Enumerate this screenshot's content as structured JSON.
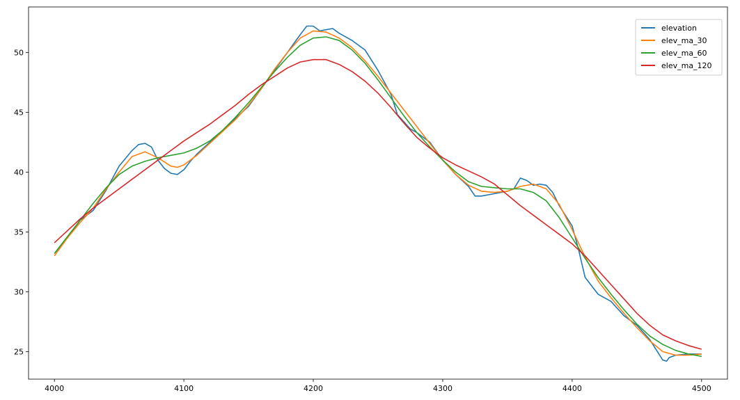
{
  "chart_data": {
    "type": "line",
    "title": "",
    "xlabel": "",
    "ylabel": "",
    "xlim": [
      3980,
      4520
    ],
    "ylim": [
      22.7,
      53.8
    ],
    "xticks": [
      4000,
      4100,
      4200,
      4300,
      4400,
      4500
    ],
    "yticks": [
      25,
      30,
      35,
      40,
      45,
      50
    ],
    "grid": false,
    "legend_position": "top-right",
    "series": [
      {
        "name": "elevation",
        "color": "#1f77b4",
        "x": [
          4000,
          4010,
          4020,
          4030,
          4040,
          4050,
          4060,
          4065,
          4070,
          4075,
          4080,
          4085,
          4090,
          4095,
          4100,
          4105,
          4110,
          4120,
          4130,
          4140,
          4150,
          4160,
          4170,
          4180,
          4190,
          4195,
          4200,
          4205,
          4210,
          4215,
          4220,
          4230,
          4240,
          4250,
          4260,
          4265,
          4270,
          4275,
          4280,
          4290,
          4300,
          4310,
          4320,
          4325,
          4330,
          4340,
          4350,
          4355,
          4360,
          4365,
          4370,
          4375,
          4380,
          4385,
          4390,
          4400,
          4405,
          4410,
          4420,
          4430,
          4440,
          4450,
          4460,
          4470,
          4473,
          4475,
          4480,
          4490,
          4500
        ],
        "values": [
          33.2,
          34.5,
          36.0,
          36.8,
          38.5,
          40.5,
          41.8,
          42.3,
          42.4,
          42.1,
          41.0,
          40.3,
          39.9,
          39.8,
          40.2,
          40.9,
          41.5,
          42.5,
          43.5,
          44.5,
          45.5,
          47.0,
          48.5,
          50.0,
          51.5,
          52.2,
          52.2,
          51.8,
          51.9,
          52.0,
          51.6,
          51.0,
          50.2,
          48.5,
          46.5,
          44.8,
          44.2,
          43.6,
          43.3,
          42.5,
          41.0,
          39.8,
          38.8,
          38.0,
          38.0,
          38.2,
          38.4,
          38.6,
          39.5,
          39.3,
          38.9,
          39.0,
          38.9,
          38.3,
          37.2,
          35.5,
          33.5,
          31.2,
          29.8,
          29.2,
          28.0,
          27.2,
          26.0,
          24.3,
          24.2,
          24.5,
          24.7,
          24.8,
          24.8
        ]
      },
      {
        "name": "elev_ma_30",
        "color": "#ff7f0e",
        "x": [
          4000,
          4010,
          4020,
          4030,
          4040,
          4050,
          4060,
          4070,
          4080,
          4090,
          4095,
          4100,
          4110,
          4120,
          4130,
          4140,
          4150,
          4160,
          4170,
          4180,
          4190,
          4200,
          4210,
          4220,
          4230,
          4240,
          4250,
          4260,
          4270,
          4280,
          4290,
          4300,
          4310,
          4320,
          4330,
          4340,
          4350,
          4360,
          4370,
          4380,
          4390,
          4400,
          4410,
          4420,
          4430,
          4440,
          4450,
          4460,
          4470,
          4480,
          4490,
          4500
        ],
        "values": [
          33.0,
          34.5,
          35.8,
          37.0,
          38.6,
          40.0,
          41.3,
          41.7,
          41.2,
          40.5,
          40.4,
          40.6,
          41.4,
          42.4,
          43.4,
          44.4,
          45.6,
          47.0,
          48.6,
          50.0,
          51.2,
          51.8,
          51.7,
          51.2,
          50.4,
          49.3,
          48.0,
          46.6,
          45.2,
          43.8,
          42.4,
          41.0,
          39.8,
          38.9,
          38.4,
          38.3,
          38.4,
          38.8,
          39.0,
          38.6,
          37.3,
          35.2,
          32.9,
          30.9,
          29.5,
          28.2,
          27.0,
          25.9,
          25.0,
          24.7,
          24.7,
          24.8
        ]
      },
      {
        "name": "elev_ma_60",
        "color": "#2ca02c",
        "x": [
          4000,
          4010,
          4020,
          4030,
          4040,
          4050,
          4060,
          4070,
          4080,
          4090,
          4100,
          4110,
          4120,
          4130,
          4140,
          4150,
          4160,
          4170,
          4180,
          4190,
          4200,
          4210,
          4220,
          4230,
          4240,
          4250,
          4260,
          4270,
          4280,
          4290,
          4300,
          4310,
          4320,
          4330,
          4340,
          4350,
          4360,
          4370,
          4380,
          4390,
          4400,
          4410,
          4420,
          4430,
          4440,
          4450,
          4460,
          4470,
          4480,
          4490,
          4500
        ],
        "values": [
          33.2,
          34.6,
          36.0,
          37.4,
          38.7,
          39.8,
          40.5,
          40.9,
          41.2,
          41.4,
          41.6,
          42.0,
          42.6,
          43.5,
          44.6,
          45.8,
          47.1,
          48.4,
          49.6,
          50.6,
          51.2,
          51.3,
          51.0,
          50.2,
          49.1,
          47.7,
          46.2,
          44.7,
          43.3,
          42.1,
          41.0,
          40.0,
          39.2,
          38.8,
          38.7,
          38.6,
          38.6,
          38.3,
          37.6,
          36.2,
          34.5,
          32.8,
          31.2,
          29.8,
          28.5,
          27.3,
          26.3,
          25.6,
          25.1,
          24.8,
          24.6
        ]
      },
      {
        "name": "elev_ma_120",
        "color": "#d62728",
        "x": [
          4000,
          4010,
          4020,
          4030,
          4040,
          4050,
          4060,
          4070,
          4080,
          4090,
          4100,
          4110,
          4120,
          4130,
          4140,
          4150,
          4160,
          4170,
          4180,
          4190,
          4200,
          4210,
          4220,
          4230,
          4240,
          4250,
          4260,
          4270,
          4280,
          4290,
          4300,
          4310,
          4320,
          4330,
          4340,
          4350,
          4360,
          4370,
          4380,
          4390,
          4400,
          4410,
          4420,
          4430,
          4440,
          4450,
          4460,
          4470,
          4480,
          4490,
          4500
        ],
        "values": [
          34.1,
          35.1,
          36.1,
          37.0,
          37.8,
          38.6,
          39.4,
          40.2,
          41.0,
          41.8,
          42.6,
          43.3,
          44.0,
          44.8,
          45.6,
          46.5,
          47.3,
          48.0,
          48.7,
          49.2,
          49.4,
          49.4,
          49.0,
          48.4,
          47.6,
          46.6,
          45.4,
          44.1,
          42.9,
          42.0,
          41.2,
          40.6,
          40.1,
          39.6,
          39.0,
          38.1,
          37.2,
          36.4,
          35.6,
          34.8,
          34.0,
          33.0,
          31.8,
          30.6,
          29.4,
          28.2,
          27.2,
          26.4,
          25.9,
          25.5,
          25.2
        ]
      }
    ]
  }
}
